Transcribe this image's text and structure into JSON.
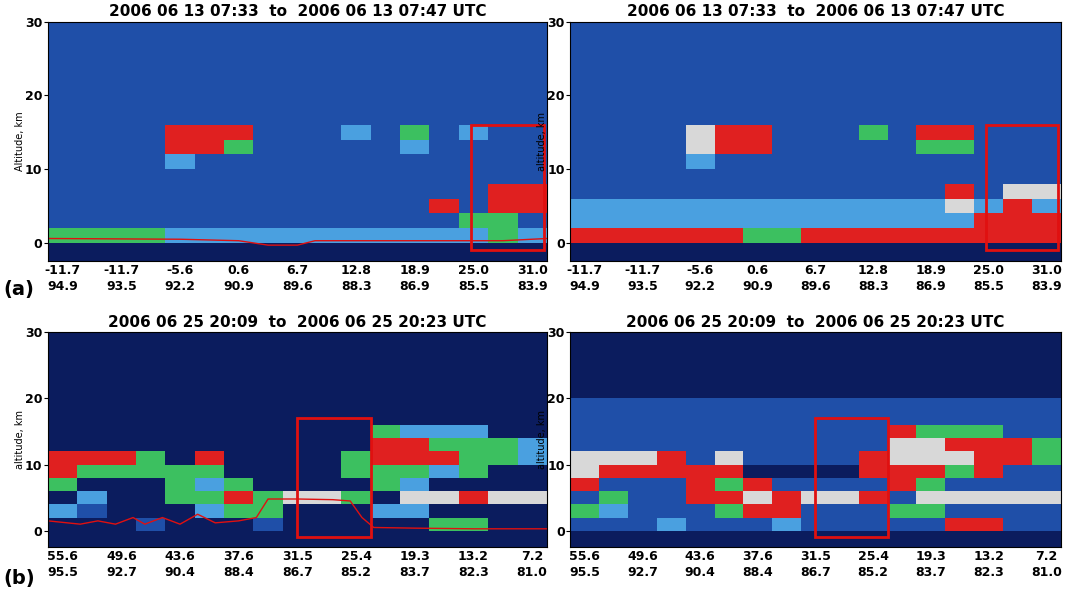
{
  "chart_data": [
    {
      "type": "heatmap",
      "title": "2006 06 13 07:33  to  2006 06 13 07:47 UTC",
      "y_label": "Altitude, km",
      "panel_label": "(a)",
      "xlim": [
        -0.25,
        8.25
      ],
      "ylim": [
        -2.5,
        30
      ],
      "yticks": [
        0,
        10,
        20,
        30
      ],
      "xticks": [
        {
          "value": 0,
          "label": "-11.7\n94.9"
        },
        {
          "value": 1,
          "label": "-11.7\n93.5"
        },
        {
          "value": 2,
          "label": "-5.6\n92.2"
        },
        {
          "value": 3,
          "label": "0.6\n90.9"
        },
        {
          "value": 4,
          "label": "6.7\n89.6"
        },
        {
          "value": 5,
          "label": "12.8\n88.3"
        },
        {
          "value": 6,
          "label": "18.9\n86.9"
        },
        {
          "value": 7,
          "label": "25.0\n85.5"
        },
        {
          "value": 8,
          "label": "31.0\n83.9"
        }
      ],
      "colors": [
        "#0b1c5e",
        "#1f4fa8",
        "#4aa0e0",
        "#3cc060",
        "#e02020",
        "#d8d8d8"
      ],
      "x_edges": [
        -0.25,
        0.25,
        0.75,
        1.25,
        1.75,
        2.25,
        2.75,
        3.25,
        3.75,
        4.25,
        4.75,
        5.25,
        5.75,
        6.25,
        6.75,
        7.25,
        7.75,
        8.25
      ],
      "y_edges": [
        -2.5,
        0,
        2,
        4,
        6,
        8,
        10,
        12,
        14,
        16,
        20,
        30
      ],
      "cells": [
        [
          0,
          0,
          0,
          0,
          0,
          0,
          0,
          0,
          0,
          0,
          0,
          0,
          0,
          0,
          0,
          0,
          0
        ],
        [
          3,
          3,
          3,
          3,
          2,
          2,
          2,
          2,
          2,
          2,
          2,
          2,
          2,
          2,
          2,
          3,
          2
        ],
        [
          1,
          1,
          1,
          1,
          1,
          1,
          1,
          1,
          1,
          1,
          1,
          1,
          1,
          1,
          3,
          3,
          1
        ],
        [
          1,
          1,
          1,
          1,
          1,
          1,
          1,
          1,
          1,
          1,
          1,
          1,
          1,
          4,
          1,
          4,
          4
        ],
        [
          1,
          1,
          1,
          1,
          1,
          1,
          1,
          1,
          1,
          1,
          1,
          1,
          1,
          1,
          1,
          4,
          4
        ],
        [
          1,
          1,
          1,
          1,
          1,
          1,
          1,
          1,
          1,
          1,
          1,
          1,
          1,
          1,
          1,
          1,
          1
        ],
        [
          1,
          1,
          1,
          1,
          2,
          1,
          1,
          1,
          1,
          1,
          1,
          1,
          1,
          1,
          1,
          1,
          1
        ],
        [
          1,
          1,
          1,
          1,
          4,
          4,
          3,
          1,
          1,
          1,
          1,
          1,
          2,
          1,
          1,
          1,
          1
        ],
        [
          1,
          1,
          1,
          1,
          4,
          4,
          4,
          1,
          1,
          1,
          2,
          1,
          3,
          1,
          2,
          1,
          1
        ],
        [
          1,
          1,
          1,
          1,
          1,
          1,
          1,
          1,
          1,
          1,
          1,
          1,
          1,
          1,
          1,
          1,
          1
        ],
        [
          1,
          1,
          1,
          1,
          1,
          1,
          1,
          1,
          1,
          1,
          1,
          1,
          1,
          1,
          1,
          1,
          1
        ]
      ],
      "surface_line": {
        "color": "#e01010",
        "x": [
          -0.25,
          2.0,
          3.0,
          3.5,
          4.0,
          4.3,
          6.0,
          7.5,
          8.25
        ],
        "values": [
          0.6,
          0.5,
          0.3,
          -0.3,
          -0.3,
          0.3,
          0.3,
          0.3,
          0.6
        ]
      },
      "box": {
        "color": "#e01010",
        "x": [
          6.95,
          8.2
        ],
        "y": [
          -1,
          16
        ]
      }
    },
    {
      "type": "heatmap",
      "title": "2006 06 13 07:33  to  2006 06 13 07:47 UTC",
      "y_label": "altitude, km",
      "xlim": [
        -0.25,
        8.25
      ],
      "ylim": [
        -2.5,
        30
      ],
      "yticks": [
        0,
        10,
        20,
        30
      ],
      "xticks": [
        {
          "value": 0,
          "label": "-11.7\n94.9"
        },
        {
          "value": 1,
          "label": "-11.7\n93.5"
        },
        {
          "value": 2,
          "label": "-5.6\n92.2"
        },
        {
          "value": 3,
          "label": "0.6\n90.9"
        },
        {
          "value": 4,
          "label": "6.7\n89.6"
        },
        {
          "value": 5,
          "label": "12.8\n88.3"
        },
        {
          "value": 6,
          "label": "18.9\n86.9"
        },
        {
          "value": 7,
          "label": "25.0\n85.5"
        },
        {
          "value": 8,
          "label": "31.0\n83.9"
        }
      ],
      "colors": [
        "#0b1c5e",
        "#1f4fa8",
        "#4aa0e0",
        "#3cc060",
        "#e02020",
        "#d8d8d8"
      ],
      "x_edges": [
        -0.25,
        0.25,
        0.75,
        1.25,
        1.75,
        2.25,
        2.75,
        3.25,
        3.75,
        4.25,
        4.75,
        5.25,
        5.75,
        6.25,
        6.75,
        7.25,
        7.75,
        8.25
      ],
      "y_edges": [
        -2.5,
        0,
        2,
        4,
        6,
        8,
        10,
        12,
        14,
        16,
        20,
        30
      ],
      "cells": [
        [
          0,
          0,
          0,
          0,
          0,
          0,
          0,
          0,
          0,
          0,
          0,
          0,
          0,
          0,
          0,
          0,
          0
        ],
        [
          4,
          4,
          4,
          4,
          4,
          4,
          3,
          3,
          4,
          4,
          4,
          4,
          4,
          4,
          4,
          4,
          4
        ],
        [
          2,
          2,
          2,
          2,
          2,
          2,
          2,
          2,
          2,
          2,
          2,
          2,
          2,
          2,
          4,
          4,
          4
        ],
        [
          2,
          2,
          2,
          2,
          2,
          2,
          2,
          2,
          2,
          2,
          2,
          2,
          2,
          5,
          2,
          4,
          2
        ],
        [
          1,
          1,
          1,
          1,
          1,
          1,
          1,
          1,
          1,
          1,
          1,
          1,
          1,
          4,
          1,
          5,
          5
        ],
        [
          1,
          1,
          1,
          1,
          1,
          1,
          1,
          1,
          1,
          1,
          1,
          1,
          1,
          1,
          1,
          1,
          1
        ],
        [
          1,
          1,
          1,
          1,
          2,
          1,
          1,
          1,
          1,
          1,
          1,
          1,
          1,
          1,
          1,
          1,
          1
        ],
        [
          1,
          1,
          1,
          1,
          5,
          4,
          4,
          1,
          1,
          1,
          1,
          1,
          3,
          3,
          1,
          1,
          1
        ],
        [
          1,
          1,
          1,
          1,
          5,
          4,
          4,
          1,
          1,
          1,
          3,
          1,
          4,
          4,
          1,
          1,
          1
        ],
        [
          1,
          1,
          1,
          1,
          1,
          1,
          1,
          1,
          1,
          1,
          1,
          1,
          1,
          1,
          1,
          1,
          1
        ],
        [
          1,
          1,
          1,
          1,
          1,
          1,
          1,
          1,
          1,
          1,
          1,
          1,
          1,
          1,
          1,
          1,
          1
        ]
      ],
      "box": {
        "color": "#e01010",
        "x": [
          6.95,
          8.2
        ],
        "y": [
          -1,
          16
        ]
      }
    },
    {
      "type": "heatmap",
      "title": "2006 06 25 20:09  to  2006 06 25 20:23 UTC",
      "y_label": "altitude, km",
      "panel_label": "(b)",
      "xlim": [
        -0.25,
        8.25
      ],
      "ylim": [
        -2.5,
        30
      ],
      "yticks": [
        0,
        10,
        20,
        30
      ],
      "xticks": [
        {
          "value": 0,
          "label": "55.6\n95.5"
        },
        {
          "value": 1,
          "label": "49.6\n92.7"
        },
        {
          "value": 2,
          "label": "43.6\n90.4"
        },
        {
          "value": 3,
          "label": "37.6\n88.4"
        },
        {
          "value": 4,
          "label": "31.5\n86.7"
        },
        {
          "value": 5,
          "label": "25.4\n85.2"
        },
        {
          "value": 6,
          "label": "19.3\n83.7"
        },
        {
          "value": 7,
          "label": "13.2\n82.3"
        },
        {
          "value": 8,
          "label": "7.2\n81.0"
        }
      ],
      "colors": [
        "#0b1c5e",
        "#1f4fa8",
        "#4aa0e0",
        "#3cc060",
        "#e02020",
        "#d8d8d8"
      ],
      "x_edges": [
        -0.25,
        0.25,
        0.75,
        1.25,
        1.75,
        2.25,
        2.75,
        3.25,
        3.75,
        4.25,
        4.75,
        5.25,
        5.75,
        6.25,
        6.75,
        7.25,
        7.75,
        8.25
      ],
      "y_edges": [
        -2.5,
        0,
        2,
        4,
        6,
        8,
        10,
        12,
        14,
        16,
        20,
        30
      ],
      "cells": [
        [
          0,
          0,
          0,
          0,
          0,
          0,
          0,
          0,
          0,
          0,
          0,
          0,
          0,
          0,
          0,
          0,
          0
        ],
        [
          0,
          0,
          0,
          1,
          0,
          0,
          0,
          1,
          0,
          0,
          0,
          0,
          0,
          3,
          3,
          0,
          0
        ],
        [
          2,
          1,
          0,
          0,
          0,
          2,
          3,
          3,
          0,
          0,
          0,
          2,
          2,
          0,
          0,
          0,
          0
        ],
        [
          0,
          2,
          0,
          0,
          3,
          3,
          4,
          3,
          5,
          5,
          3,
          0,
          5,
          5,
          4,
          5,
          5
        ],
        [
          3,
          0,
          0,
          0,
          3,
          2,
          3,
          0,
          0,
          0,
          0,
          3,
          2,
          0,
          0,
          0,
          0
        ],
        [
          4,
          3,
          3,
          3,
          3,
          3,
          0,
          0,
          0,
          0,
          3,
          3,
          3,
          2,
          3,
          0,
          0
        ],
        [
          4,
          4,
          4,
          3,
          0,
          4,
          0,
          0,
          0,
          0,
          3,
          4,
          4,
          4,
          3,
          3,
          2
        ],
        [
          0,
          0,
          0,
          0,
          0,
          0,
          0,
          0,
          0,
          0,
          0,
          4,
          4,
          3,
          3,
          3,
          2
        ],
        [
          0,
          0,
          0,
          0,
          0,
          0,
          0,
          0,
          0,
          0,
          0,
          3,
          2,
          2,
          2,
          0,
          0
        ],
        [
          0,
          0,
          0,
          0,
          0,
          0,
          0,
          0,
          0,
          0,
          0,
          0,
          0,
          0,
          0,
          0,
          0
        ],
        [
          0,
          0,
          0,
          0,
          0,
          0,
          0,
          0,
          0,
          0,
          0,
          0,
          0,
          0,
          0,
          0,
          0
        ]
      ],
      "surface_line": {
        "color": "#e01010",
        "x": [
          -0.25,
          0.3,
          0.6,
          0.9,
          1.2,
          1.4,
          1.7,
          2.0,
          2.3,
          2.6,
          3.0,
          3.3,
          3.5,
          4.0,
          4.6,
          4.9,
          5.1,
          5.3,
          6.0,
          7.0,
          8.0,
          8.25
        ],
        "values": [
          1.5,
          1.0,
          1.5,
          1.0,
          2.0,
          1.0,
          2.0,
          1.0,
          2.5,
          1.2,
          1.5,
          2.0,
          4.8,
          4.8,
          4.7,
          4.5,
          2.0,
          0.5,
          0.4,
          0.3,
          0.3,
          0.3
        ]
      },
      "box": {
        "color": "#e01010",
        "x": [
          4.0,
          5.25
        ],
        "y": [
          -1,
          17
        ]
      }
    },
    {
      "type": "heatmap",
      "title": "2006 06 25 20:09  to  2006 06 25 20:23 UTC",
      "y_label": "altitude, km",
      "xlim": [
        -0.25,
        8.25
      ],
      "ylim": [
        -2.5,
        30
      ],
      "yticks": [
        0,
        10,
        20,
        30
      ],
      "xticks": [
        {
          "value": 0,
          "label": "55.6\n95.5"
        },
        {
          "value": 1,
          "label": "49.6\n92.7"
        },
        {
          "value": 2,
          "label": "43.6\n90.4"
        },
        {
          "value": 3,
          "label": "37.6\n88.4"
        },
        {
          "value": 4,
          "label": "31.5\n86.7"
        },
        {
          "value": 5,
          "label": "25.4\n85.2"
        },
        {
          "value": 6,
          "label": "19.3\n83.7"
        },
        {
          "value": 7,
          "label": "13.2\n82.3"
        },
        {
          "value": 8,
          "label": "7.2\n81.0"
        }
      ],
      "colors": [
        "#0b1c5e",
        "#1f4fa8",
        "#4aa0e0",
        "#3cc060",
        "#e02020",
        "#d8d8d8"
      ],
      "x_edges": [
        -0.25,
        0.25,
        0.75,
        1.25,
        1.75,
        2.25,
        2.75,
        3.25,
        3.75,
        4.25,
        4.75,
        5.25,
        5.75,
        6.25,
        6.75,
        7.25,
        7.75,
        8.25
      ],
      "y_edges": [
        -2.5,
        0,
        2,
        4,
        6,
        8,
        10,
        12,
        14,
        16,
        20,
        30
      ],
      "cells": [
        [
          0,
          0,
          0,
          0,
          0,
          0,
          0,
          0,
          0,
          0,
          0,
          0,
          0,
          0,
          0,
          0,
          0
        ],
        [
          1,
          1,
          1,
          2,
          1,
          1,
          1,
          2,
          1,
          1,
          1,
          1,
          1,
          4,
          4,
          1,
          1
        ],
        [
          3,
          2,
          1,
          1,
          1,
          3,
          4,
          4,
          1,
          1,
          1,
          3,
          3,
          1,
          1,
          1,
          1
        ],
        [
          1,
          3,
          1,
          1,
          4,
          4,
          5,
          4,
          5,
          5,
          4,
          1,
          5,
          5,
          5,
          5,
          5
        ],
        [
          4,
          1,
          1,
          1,
          4,
          3,
          4,
          1,
          1,
          1,
          1,
          4,
          3,
          1,
          1,
          1,
          1
        ],
        [
          5,
          4,
          4,
          4,
          4,
          4,
          0,
          0,
          0,
          0,
          4,
          4,
          4,
          3,
          4,
          1,
          1
        ],
        [
          5,
          5,
          5,
          4,
          1,
          5,
          1,
          1,
          1,
          1,
          4,
          5,
          5,
          5,
          4,
          4,
          3
        ],
        [
          1,
          1,
          1,
          1,
          1,
          1,
          1,
          1,
          1,
          1,
          1,
          5,
          5,
          4,
          4,
          4,
          3
        ],
        [
          1,
          1,
          1,
          1,
          1,
          1,
          1,
          1,
          1,
          1,
          1,
          4,
          3,
          3,
          3,
          1,
          1
        ],
        [
          1,
          1,
          1,
          1,
          1,
          1,
          1,
          1,
          1,
          1,
          1,
          1,
          1,
          1,
          1,
          1,
          1
        ],
        [
          0,
          0,
          0,
          0,
          0,
          0,
          0,
          0,
          0,
          0,
          0,
          0,
          0,
          0,
          0,
          0,
          0
        ]
      ],
      "box": {
        "color": "#e01010",
        "x": [
          4.0,
          5.25
        ],
        "y": [
          -1,
          17
        ]
      }
    }
  ]
}
